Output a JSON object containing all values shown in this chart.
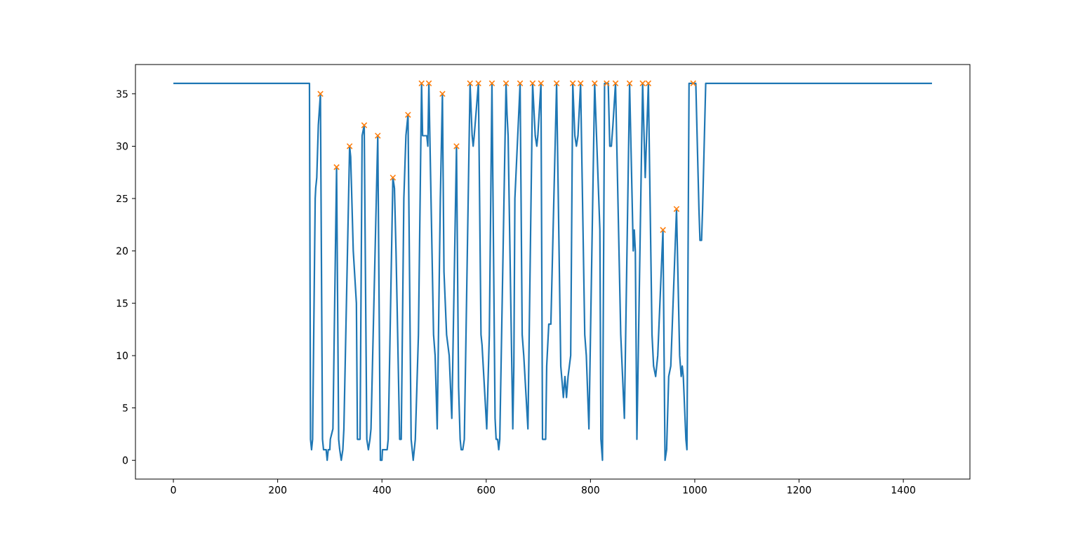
{
  "chart_data": {
    "type": "line",
    "xlim": [
      -72.75,
      1527.75
    ],
    "ylim": [
      -1.8,
      37.8
    ],
    "xticks": [
      0,
      200,
      400,
      600,
      800,
      1000,
      1200,
      1400
    ],
    "yticks": [
      0,
      5,
      10,
      15,
      20,
      25,
      30,
      35
    ],
    "grid": false,
    "series": [
      {
        "color": "#1f77b4",
        "marker": "none",
        "x": [
          0,
          261,
          263,
          265,
          267,
          272,
          273,
          275,
          278,
          282,
          286,
          288,
          293,
          295,
          297,
          300,
          301,
          306,
          313,
          317,
          319,
          322,
          325,
          327,
          338,
          340,
          345,
          351,
          353,
          358,
          362,
          366,
          371,
          374,
          377,
          379,
          392,
          397,
          400,
          401,
          410,
          412,
          421,
          424,
          427,
          429,
          434,
          437,
          442,
          446,
          450,
          456,
          460,
          464,
          470,
          476,
          478,
          486,
          488,
          490,
          499,
          502,
          506,
          512,
          516,
          519,
          524,
          529,
          534,
          543,
          547,
          550,
          552,
          555,
          558,
          569,
          573,
          575,
          577,
          585,
          590,
          592,
          601,
          606,
          611,
          617,
          619,
          622,
          624,
          626,
          638,
          640,
          642,
          651,
          653,
          655,
          665,
          669,
          672,
          680,
          689,
          694,
          697,
          699,
          705,
          708,
          714,
          716,
          718,
          720,
          724,
          735,
          743,
          748,
          751,
          754,
          757,
          762,
          766,
          770,
          773,
          776,
          781,
          789,
          792,
          797,
          808,
          818,
          820,
          823,
          827,
          834,
          837,
          840,
          843,
          848,
          858,
          865,
          875,
          882,
          884,
          886,
          889,
          900,
          905,
          911,
          918,
          921,
          925,
          929,
          939,
          943,
          946,
          950,
          954,
          965,
          971,
          974,
          976,
          978,
          983,
          985,
          989,
          1002,
          1008,
          1010,
          1013,
          1015,
          1021,
          1455
        ],
        "values": [
          36,
          36,
          2,
          1,
          2,
          25,
          26,
          27,
          32,
          35,
          2,
          1,
          1,
          0,
          1,
          1,
          2,
          3,
          28,
          2,
          1,
          0,
          1,
          3,
          30,
          29,
          20,
          15,
          2,
          2,
          31,
          32,
          2,
          1,
          2,
          3,
          31,
          0,
          0,
          1,
          1,
          2,
          27,
          26,
          20,
          15,
          2,
          2,
          25,
          31,
          33,
          2,
          0,
          2,
          12,
          36,
          31,
          31,
          30,
          36,
          12,
          10,
          3,
          25,
          35,
          18,
          12,
          10,
          4,
          30,
          7,
          2,
          1,
          1,
          2,
          36,
          31,
          30,
          31,
          36,
          12,
          11,
          3,
          12,
          36,
          4,
          2,
          2,
          1,
          2,
          36,
          33,
          31,
          3,
          9,
          25,
          36,
          12,
          10,
          3,
          36,
          31,
          30,
          31,
          36,
          2,
          2,
          9,
          11,
          13,
          13,
          36,
          9,
          6,
          8,
          6,
          8,
          10,
          36,
          31,
          30,
          31,
          36,
          12,
          10,
          3,
          36,
          22,
          2,
          0,
          36,
          36,
          30,
          30,
          32,
          36,
          12,
          4,
          36,
          20,
          22,
          20,
          2,
          36,
          27,
          36,
          12,
          9,
          8,
          10,
          22,
          0,
          1,
          8,
          9,
          24,
          10,
          8,
          9,
          8,
          2,
          1,
          36,
          36,
          24,
          21,
          21,
          24,
          36,
          36
        ]
      },
      {
        "type": "scatter",
        "color": "#ff7f0e",
        "marker": "cross",
        "x": [
          282,
          313,
          338,
          366,
          392,
          421,
          450,
          476,
          490,
          516,
          543,
          569,
          585,
          611,
          638,
          665,
          689,
          705,
          735,
          766,
          781,
          808,
          831,
          848,
          875,
          900,
          911,
          939,
          965,
          997
        ],
        "values": [
          35,
          28,
          30,
          32,
          31,
          27,
          33,
          36,
          36,
          35,
          30,
          36,
          36,
          36,
          36,
          36,
          36,
          36,
          36,
          36,
          36,
          36,
          36,
          36,
          36,
          36,
          36,
          22,
          24,
          36
        ]
      }
    ]
  }
}
